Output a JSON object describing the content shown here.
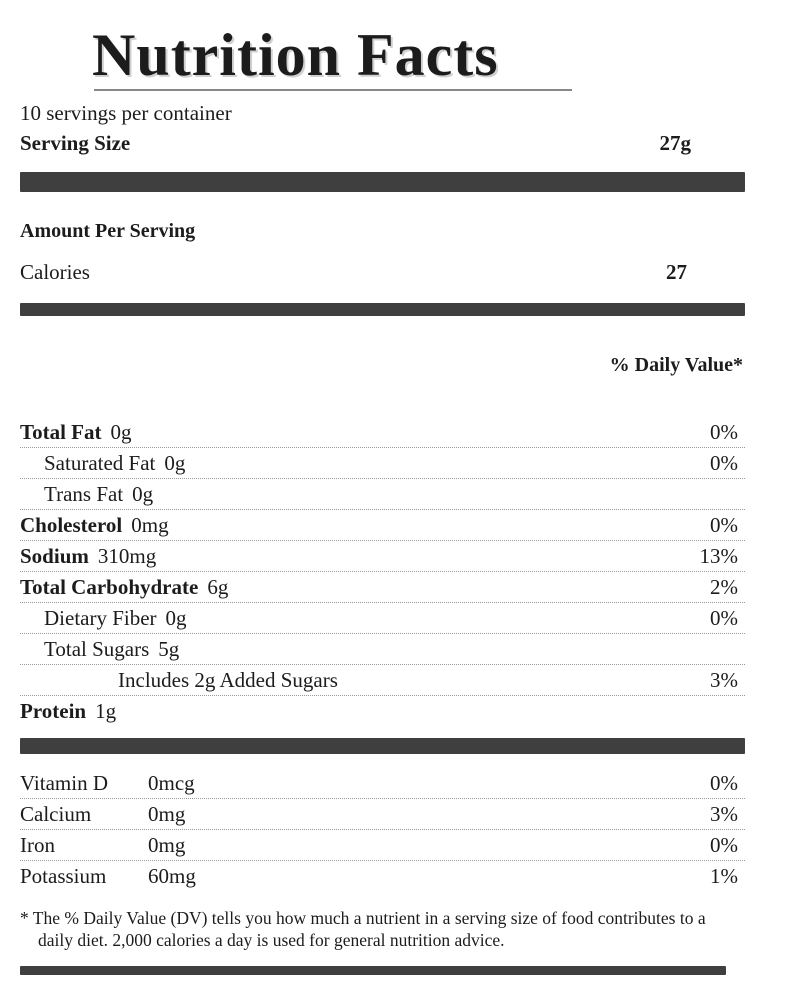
{
  "title": "Nutrition Facts",
  "servings_per_container": "10 servings per container",
  "serving_size": {
    "label": "Serving Size",
    "value": "27g"
  },
  "amount_per_serving": "Amount Per Serving",
  "calories": {
    "label": "Calories",
    "value": "27"
  },
  "daily_value_header": "% Daily Value*",
  "nutrients": [
    {
      "name": "Total Fat",
      "amount": "0g",
      "dv": "0%"
    },
    {
      "name": "Saturated Fat",
      "amount": "0g",
      "dv": "0%"
    },
    {
      "name": "Trans Fat",
      "amount": "0g",
      "dv": ""
    },
    {
      "name": "Cholesterol",
      "amount": "0mg",
      "dv": "0%"
    },
    {
      "name": "Sodium",
      "amount": "310mg",
      "dv": "13%"
    },
    {
      "name": "Total Carbohydrate",
      "amount": "6g",
      "dv": "2%"
    },
    {
      "name": "Dietary Fiber",
      "amount": "0g",
      "dv": "0%"
    },
    {
      "name": "Total Sugars",
      "amount": "5g",
      "dv": ""
    },
    {
      "name": "Includes 2g Added Sugars",
      "amount": "",
      "dv": "3%"
    },
    {
      "name": "Protein",
      "amount": "1g",
      "dv": ""
    }
  ],
  "vitamins": [
    {
      "name": "Vitamin D",
      "amount": "0mcg",
      "dv": "0%"
    },
    {
      "name": "Calcium",
      "amount": "0mg",
      "dv": "3%"
    },
    {
      "name": "Iron",
      "amount": "0mg",
      "dv": "0%"
    },
    {
      "name": "Potassium",
      "amount": "60mg",
      "dv": "1%"
    }
  ],
  "footnote": "* The % Daily Value (DV) tells you how much a nutrient in a serving size of food contributes to a daily diet. 2,000 calories a day is used for general nutrition advice.",
  "colors": {
    "ink": "#1c1c1c",
    "bar": "#3f3f3f",
    "rule": "#9a9a9a"
  }
}
